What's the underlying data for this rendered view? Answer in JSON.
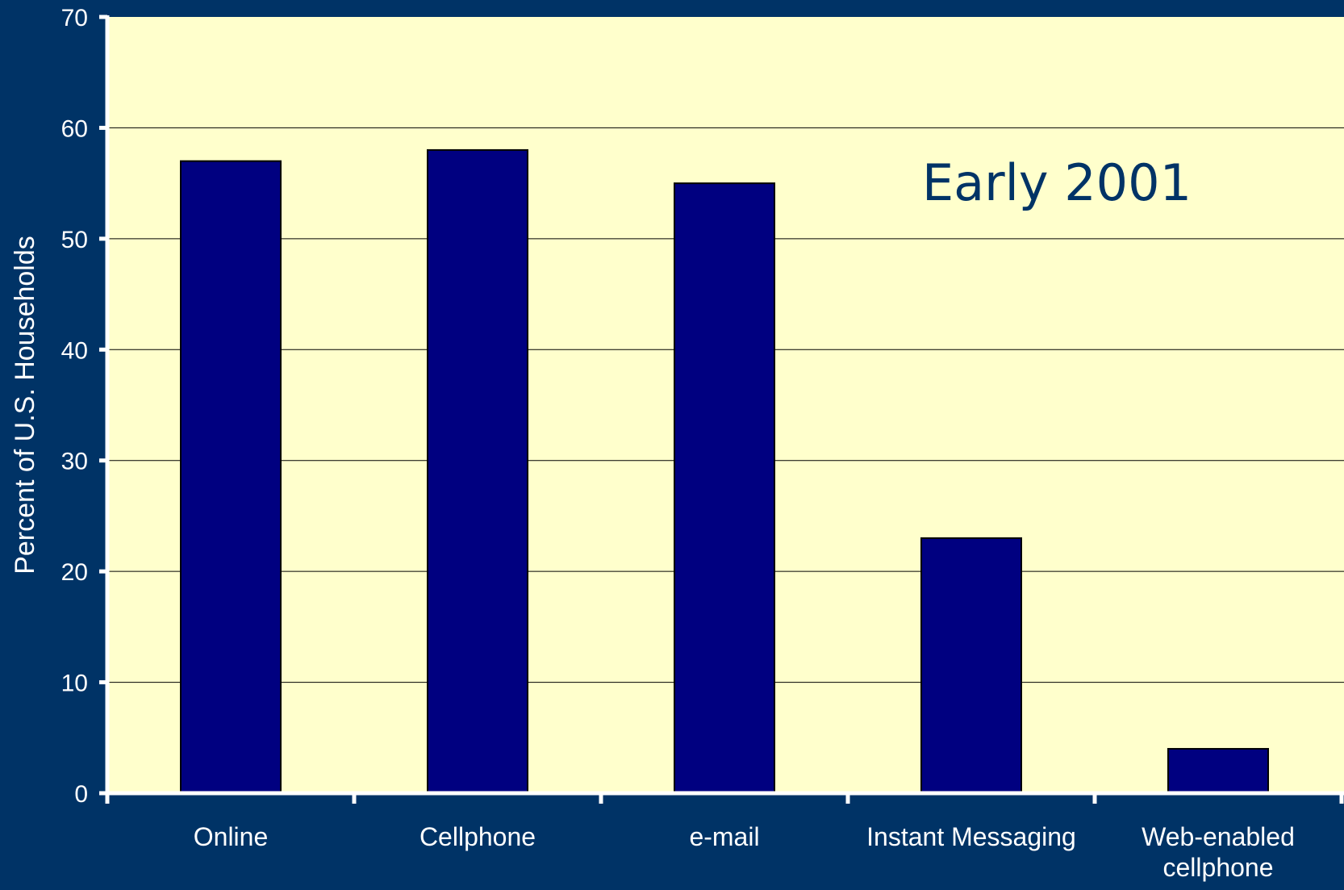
{
  "chart_data": {
    "type": "bar",
    "categories": [
      "Online",
      "Cellphone",
      "e-mail",
      "Instant Messaging",
      "Web-enabled cellphone"
    ],
    "category_lines": [
      [
        "Online"
      ],
      [
        "Cellphone"
      ],
      [
        "e-mail"
      ],
      [
        "Instant Messaging"
      ],
      [
        "Web-enabled",
        "cellphone"
      ]
    ],
    "values": [
      57,
      58,
      55,
      23,
      4
    ],
    "ylabel": "Percent of U.S. Households",
    "ylim": [
      0,
      70
    ],
    "yticks": [
      0,
      10,
      20,
      30,
      40,
      50,
      60,
      70
    ],
    "annotation": "Early 2001",
    "grid": true,
    "legend": "none",
    "colors": {
      "background": "#003366",
      "plot_area": "#FFFFCC",
      "bar_fill": "#000080",
      "bar_stroke": "#000000",
      "text": "#FFFFFF",
      "annotation_text": "#003366",
      "gridline": "#000000"
    }
  }
}
